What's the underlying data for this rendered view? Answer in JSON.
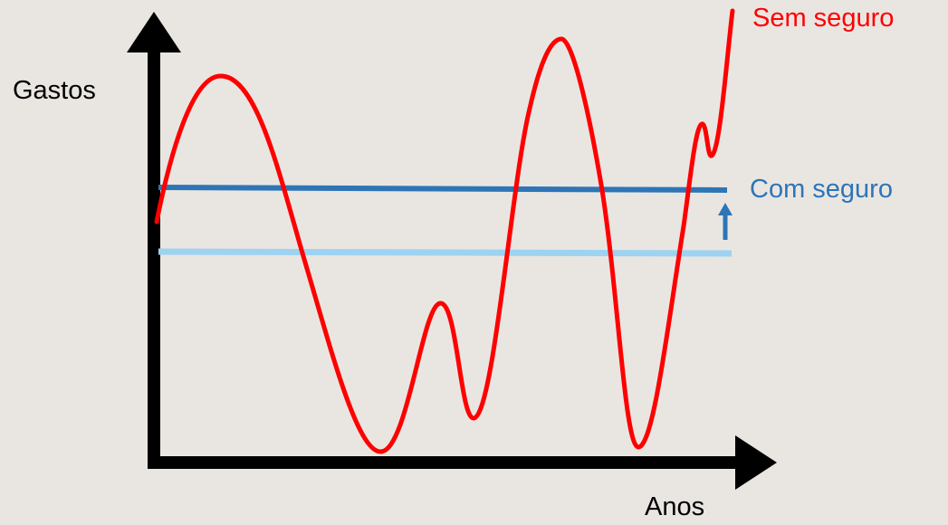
{
  "labels": {
    "y_axis": "Gastos",
    "x_axis": "Anos",
    "without_insurance": "Sem seguro",
    "with_insurance": "Com seguro"
  },
  "colors": {
    "background": "#e9e6e2",
    "axes": "#000000",
    "without_insurance": "#ff0000",
    "with_insurance": "#2e75b6",
    "baseline": "#9dd3f0"
  }
}
